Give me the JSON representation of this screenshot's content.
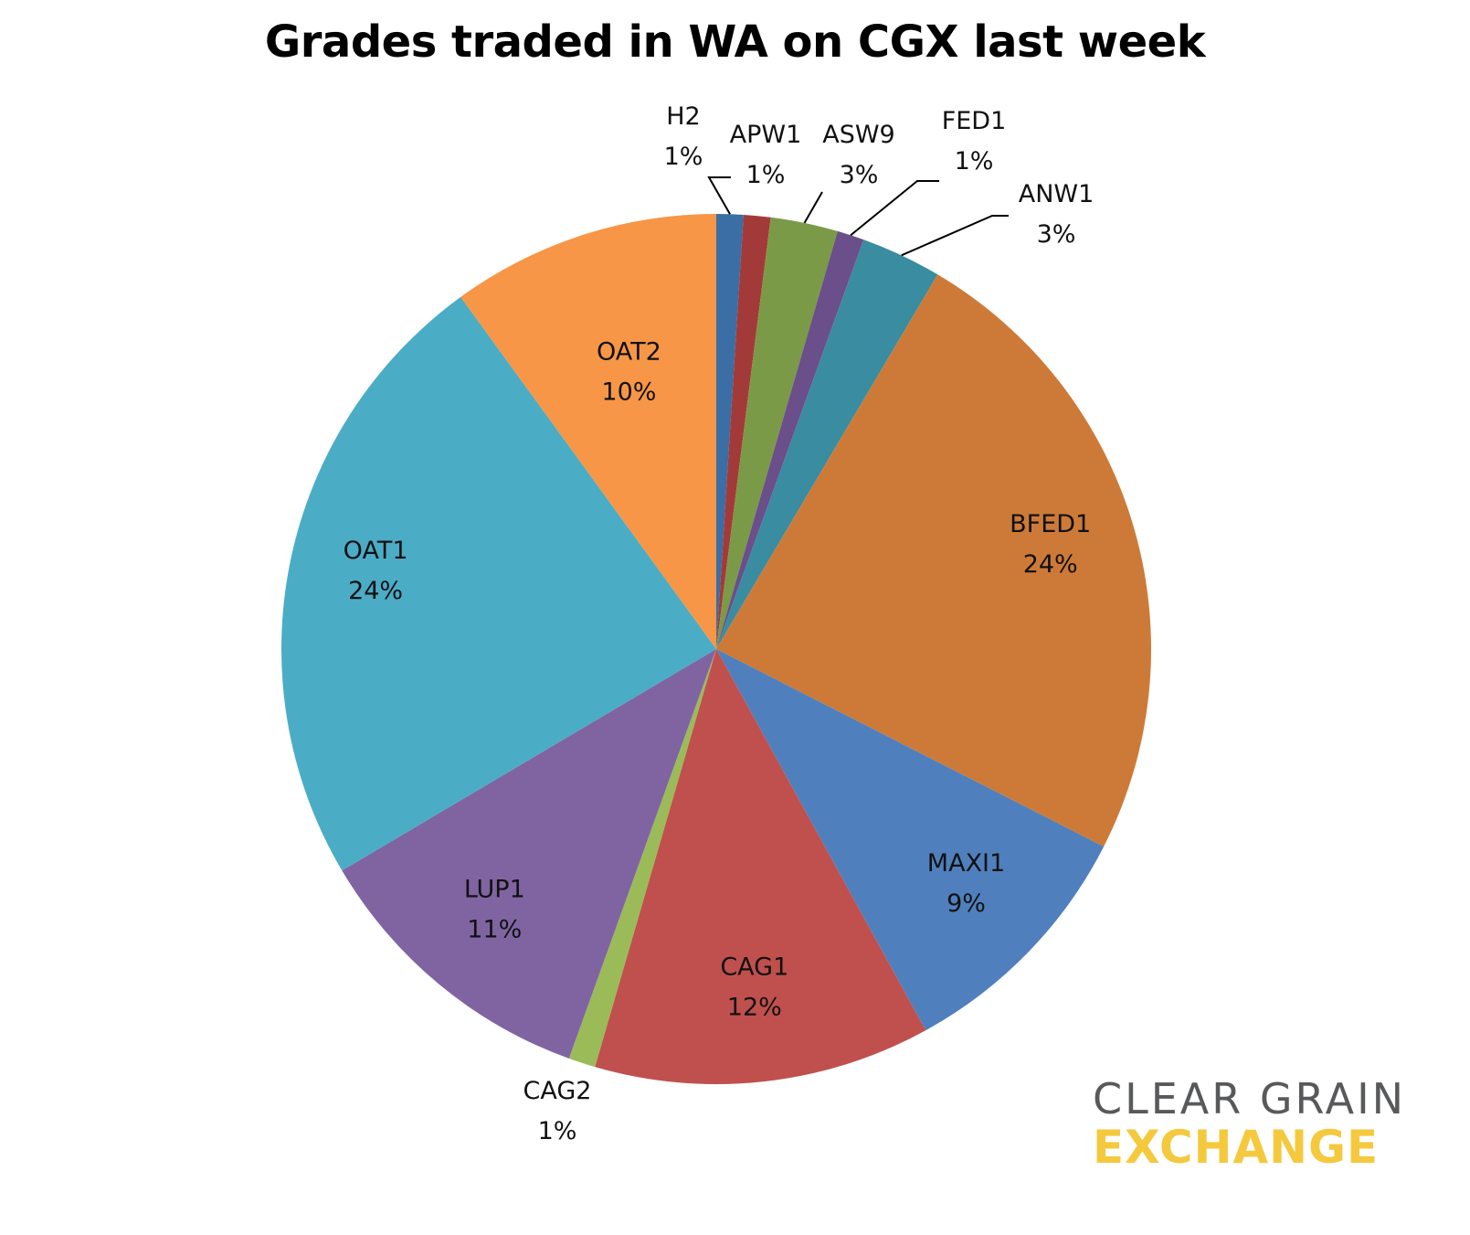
{
  "chart_data": {
    "type": "pie",
    "title": "Grades traded in WA on CGX last week",
    "start_angle_deg": 0,
    "direction": "clockwise",
    "slices": [
      {
        "label": "H2",
        "pct_label": "1%",
        "value": 1,
        "color": "#3a6ea5"
      },
      {
        "label": "APW1",
        "pct_label": "1%",
        "value": 1,
        "color": "#a33a3a"
      },
      {
        "label": "ASW9",
        "pct_label": "3%",
        "value": 2.5,
        "color": "#7b9a47"
      },
      {
        "label": "FED1",
        "pct_label": "1%",
        "value": 1,
        "color": "#6a4f8a"
      },
      {
        "label": "ANW1",
        "pct_label": "3%",
        "value": 3,
        "color": "#3a8ca0"
      },
      {
        "label": "BFED1",
        "pct_label": "24%",
        "value": 24,
        "color": "#cd7a38"
      },
      {
        "label": "MAXI1",
        "pct_label": "9%",
        "value": 9.5,
        "color": "#4f80bd"
      },
      {
        "label": "CAG1",
        "pct_label": "12%",
        "value": 12.5,
        "color": "#c0504d"
      },
      {
        "label": "CAG2",
        "pct_label": "1%",
        "value": 1,
        "color": "#9bbb59"
      },
      {
        "label": "LUP1",
        "pct_label": "11%",
        "value": 11,
        "color": "#8064a2"
      },
      {
        "label": "OAT1",
        "pct_label": "24%",
        "value": 23.5,
        "color": "#4bacc6"
      },
      {
        "label": "OAT2",
        "pct_label": "10%",
        "value": 10,
        "color": "#f79646"
      }
    ]
  },
  "logo": {
    "line1": "CLEAR GRAIN",
    "line2": "EXCHANGE",
    "text_color": "#58595b",
    "accent_color": "#f5c93e"
  }
}
